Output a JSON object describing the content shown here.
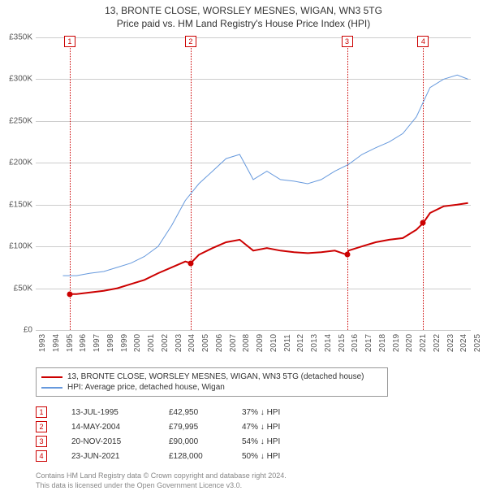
{
  "title": "13, BRONTE CLOSE, WORSLEY MESNES, WIGAN, WN3 5TG",
  "subtitle": "Price paid vs. HM Land Registry's House Price Index (HPI)",
  "chart": {
    "type": "line",
    "background_color": "#ffffff",
    "grid_color": "#cccccc",
    "x_start_year": 1993,
    "x_end_year": 2025,
    "y_max": 350000,
    "y_step": 50000,
    "y_labels": [
      "£0",
      "£50K",
      "£100K",
      "£150K",
      "£200K",
      "£250K",
      "£300K",
      "£350K"
    ],
    "series": [
      {
        "name": "property",
        "color": "#cc0000",
        "width": 2,
        "label": "13, BRONTE CLOSE, WORSLEY MESNES, WIGAN, WN3 5TG (detached house)",
        "points": [
          [
            1995.5,
            42950
          ],
          [
            1996,
            43000
          ],
          [
            1997,
            45000
          ],
          [
            1998,
            47000
          ],
          [
            1999,
            50000
          ],
          [
            2000,
            55000
          ],
          [
            2001,
            60000
          ],
          [
            2002,
            68000
          ],
          [
            2003,
            75000
          ],
          [
            2004,
            82000
          ],
          [
            2004.4,
            79995
          ],
          [
            2005,
            90000
          ],
          [
            2006,
            98000
          ],
          [
            2007,
            105000
          ],
          [
            2008,
            108000
          ],
          [
            2009,
            95000
          ],
          [
            2010,
            98000
          ],
          [
            2011,
            95000
          ],
          [
            2012,
            93000
          ],
          [
            2013,
            92000
          ],
          [
            2014,
            93000
          ],
          [
            2015,
            95000
          ],
          [
            2015.9,
            90000
          ],
          [
            2016,
            95000
          ],
          [
            2017,
            100000
          ],
          [
            2018,
            105000
          ],
          [
            2019,
            108000
          ],
          [
            2020,
            110000
          ],
          [
            2021,
            120000
          ],
          [
            2021.5,
            128000
          ],
          [
            2022,
            140000
          ],
          [
            2023,
            148000
          ],
          [
            2024,
            150000
          ],
          [
            2024.8,
            152000
          ]
        ]
      },
      {
        "name": "hpi",
        "color": "#6699dd",
        "width": 1,
        "label": "HPI: Average price, detached house, Wigan",
        "points": [
          [
            1995,
            65000
          ],
          [
            1996,
            65000
          ],
          [
            1997,
            68000
          ],
          [
            1998,
            70000
          ],
          [
            1999,
            75000
          ],
          [
            2000,
            80000
          ],
          [
            2001,
            88000
          ],
          [
            2002,
            100000
          ],
          [
            2003,
            125000
          ],
          [
            2004,
            155000
          ],
          [
            2005,
            175000
          ],
          [
            2006,
            190000
          ],
          [
            2007,
            205000
          ],
          [
            2008,
            210000
          ],
          [
            2009,
            180000
          ],
          [
            2010,
            190000
          ],
          [
            2011,
            180000
          ],
          [
            2012,
            178000
          ],
          [
            2013,
            175000
          ],
          [
            2014,
            180000
          ],
          [
            2015,
            190000
          ],
          [
            2016,
            198000
          ],
          [
            2017,
            210000
          ],
          [
            2018,
            218000
          ],
          [
            2019,
            225000
          ],
          [
            2020,
            235000
          ],
          [
            2021,
            255000
          ],
          [
            2022,
            290000
          ],
          [
            2023,
            300000
          ],
          [
            2024,
            305000
          ],
          [
            2024.8,
            300000
          ]
        ]
      }
    ],
    "sales": [
      {
        "idx": "1",
        "year": 1995.5,
        "value": 42950,
        "date": "13-JUL-1995",
        "price": "£42,950",
        "pct": "37%",
        "note": "↓ HPI"
      },
      {
        "idx": "2",
        "year": 2004.4,
        "value": 79995,
        "date": "14-MAY-2004",
        "price": "£79,995",
        "pct": "47%",
        "note": "↓ HPI"
      },
      {
        "idx": "3",
        "year": 2015.9,
        "value": 90000,
        "date": "20-NOV-2015",
        "price": "£90,000",
        "pct": "54%",
        "note": "↓ HPI"
      },
      {
        "idx": "4",
        "year": 2021.5,
        "value": 128000,
        "date": "23-JUN-2021",
        "price": "£128,000",
        "pct": "50%",
        "note": "↓ HPI"
      }
    ]
  },
  "footer1": "Contains HM Land Registry data © Crown copyright and database right 2024.",
  "footer2": "This data is licensed under the Open Government Licence v3.0."
}
